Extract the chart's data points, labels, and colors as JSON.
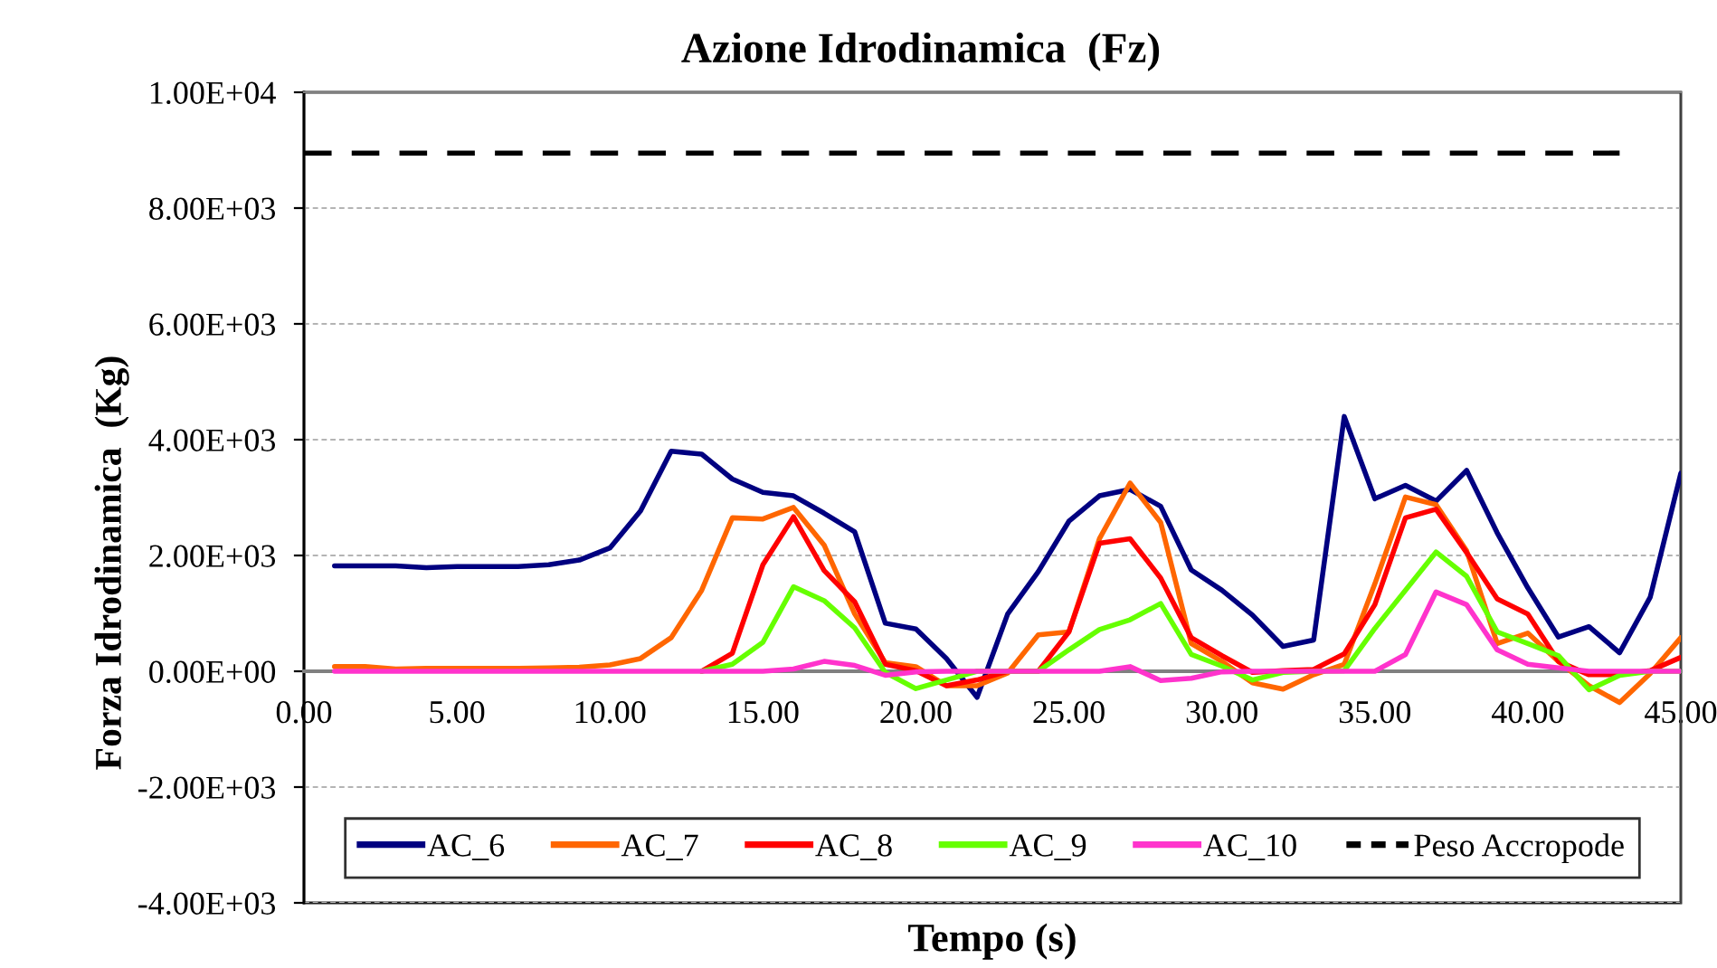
{
  "chart_data": {
    "type": "line",
    "title": "Azione Idrodinamica  (Fz)",
    "xlabel": "Tempo (s)",
    "ylabel": "Forza Idrodinamica  (Kg)",
    "x": [
      1,
      2,
      3,
      4,
      5,
      6,
      7,
      8,
      9,
      10,
      11,
      12,
      13,
      14,
      15,
      16,
      17,
      18,
      19,
      20,
      21,
      22,
      23,
      24,
      25,
      26,
      27,
      28,
      29,
      30,
      31,
      32,
      33,
      34,
      35,
      36,
      37,
      38,
      39,
      40,
      41,
      42,
      43,
      44,
      45
    ],
    "xlim": [
      0,
      45
    ],
    "xticks": [
      {
        "value": 0,
        "label": "0.00"
      },
      {
        "value": 5,
        "label": "5.00"
      },
      {
        "value": 10,
        "label": "10.00"
      },
      {
        "value": 15,
        "label": "15.00"
      },
      {
        "value": 20,
        "label": "20.00"
      },
      {
        "value": 25,
        "label": "25.00"
      },
      {
        "value": 30,
        "label": "30.00"
      },
      {
        "value": 35,
        "label": "35.00"
      },
      {
        "value": 40,
        "label": "40.00"
      },
      {
        "value": 45,
        "label": "45.00"
      }
    ],
    "ylim": [
      -4000,
      10000
    ],
    "yticks": [
      {
        "value": -4000,
        "label": "-4.00E+03"
      },
      {
        "value": -2000,
        "label": "-2.00E+03"
      },
      {
        "value": 0,
        "label": "0.00E+00"
      },
      {
        "value": 2000,
        "label": "2.00E+03"
      },
      {
        "value": 4000,
        "label": "4.00E+03"
      },
      {
        "value": 6000,
        "label": "6.00E+03"
      },
      {
        "value": 8000,
        "label": "8.00E+03"
      },
      {
        "value": 10000,
        "label": "1.00E+04"
      }
    ],
    "grid": "y",
    "legend": "bottom",
    "marker": "none",
    "line_style": "solid",
    "series": [
      {
        "name": "AC_6",
        "color": "#000080",
        "values": [
          1820,
          1820,
          1820,
          1790,
          1810,
          1810,
          1810,
          1840,
          1920,
          2130,
          2770,
          3800,
          3750,
          3320,
          3090,
          3030,
          2730,
          2410,
          830,
          730,
          220,
          -450,
          990,
          1720,
          2590,
          3030,
          3140,
          2850,
          1750,
          1400,
          970,
          430,
          540,
          4400,
          2980,
          3210,
          2940,
          3470,
          2390,
          1440,
          590,
          770,
          320,
          1280,
          3420
        ]
      },
      {
        "name": "AC_7",
        "color": "#ff6600",
        "values": [
          80,
          80,
          40,
          50,
          50,
          50,
          50,
          60,
          70,
          110,
          220,
          580,
          1400,
          2650,
          2630,
          2830,
          2180,
          990,
          150,
          80,
          -250,
          -250,
          -30,
          630,
          680,
          2290,
          3250,
          2570,
          480,
          170,
          -200,
          -310,
          -60,
          120,
          1510,
          3010,
          2880,
          2080,
          480,
          660,
          170,
          -250,
          -540,
          -40,
          580
        ]
      },
      {
        "name": "AC_8",
        "color": "#ff0000",
        "values": [
          null,
          null,
          null,
          null,
          null,
          null,
          null,
          null,
          null,
          null,
          null,
          null,
          0,
          310,
          1840,
          2670,
          1740,
          1200,
          120,
          10,
          -250,
          -150,
          0,
          0,
          680,
          2210,
          2290,
          1610,
          580,
          270,
          -20,
          10,
          30,
          300,
          1150,
          2650,
          2800,
          2050,
          1250,
          990,
          170,
          -60,
          -60,
          10,
          240
        ]
      },
      {
        "name": "AC_9",
        "color": "#66ff00",
        "values": [
          null,
          null,
          null,
          null,
          null,
          null,
          null,
          null,
          null,
          null,
          null,
          null,
          0,
          120,
          500,
          1460,
          1220,
          750,
          -20,
          -300,
          -150,
          0,
          0,
          0,
          370,
          720,
          890,
          1170,
          290,
          90,
          -150,
          -20,
          0,
          10,
          740,
          1400,
          2060,
          1640,
          680,
          480,
          270,
          -320,
          -70,
          0,
          0
        ]
      },
      {
        "name": "AC_10",
        "color": "#ff33cc",
        "values": [
          0,
          0,
          0,
          0,
          0,
          0,
          0,
          0,
          0,
          0,
          0,
          0,
          0,
          0,
          0,
          40,
          170,
          100,
          -70,
          -10,
          0,
          0,
          0,
          0,
          0,
          0,
          80,
          -160,
          -120,
          -10,
          0,
          0,
          0,
          0,
          0,
          290,
          1370,
          1150,
          370,
          120,
          60,
          0,
          0,
          0,
          0
        ]
      },
      {
        "name": "Peso Accropode",
        "color": "#000000",
        "line_style": "dashed",
        "x": [
          0,
          43
        ],
        "values": [
          8950,
          8950
        ]
      }
    ]
  }
}
